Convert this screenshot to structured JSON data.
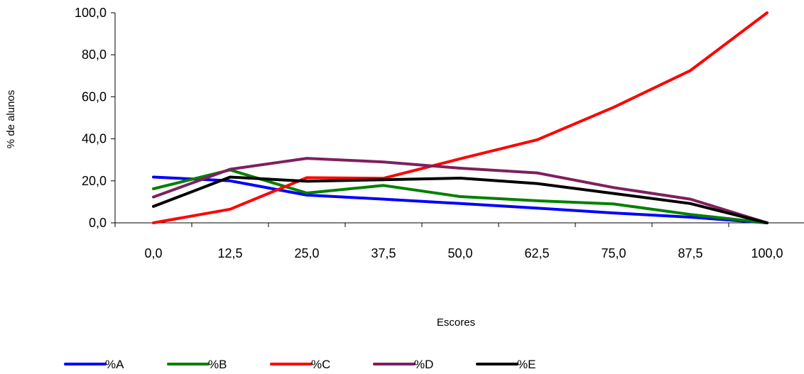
{
  "chart_data": {
    "type": "line",
    "title": "",
    "xlabel": "Escores",
    "ylabel": "% de alunos",
    "categories": [
      "0,0",
      "12,5",
      "25,0",
      "37,5",
      "50,0",
      "62,5",
      "75,0",
      "87,5",
      "100,0"
    ],
    "y_tick_labels": [
      "0,0",
      "20,0",
      "40,0",
      "60,0",
      "80,0",
      "100,0"
    ],
    "ylim": [
      0,
      100
    ],
    "y_ticks": [
      0,
      20,
      40,
      60,
      80,
      100
    ],
    "grid": false,
    "legend_position": "bottom",
    "series": [
      {
        "name": "%A",
        "color": "#0000ff",
        "values": [
          21.8,
          20.0,
          13.2,
          11.3,
          9.2,
          7.0,
          4.7,
          2.7,
          0.0
        ]
      },
      {
        "name": "%B",
        "color": "#008000",
        "values": [
          16.2,
          25.2,
          14.2,
          17.8,
          12.5,
          10.5,
          9.0,
          4.0,
          0.0
        ]
      },
      {
        "name": "%C",
        "color": "#ff0000",
        "values": [
          0.0,
          6.5,
          21.5,
          21.2,
          30.5,
          39.5,
          55.0,
          72.5,
          100.0
        ]
      },
      {
        "name": "%D",
        "color": "#7f1f5f",
        "values": [
          12.3,
          25.5,
          30.7,
          29.0,
          26.0,
          23.8,
          16.8,
          11.3,
          0.0
        ]
      },
      {
        "name": "%E",
        "color": "#000000",
        "values": [
          7.8,
          21.8,
          19.8,
          20.5,
          21.3,
          18.7,
          14.0,
          9.2,
          0.0
        ]
      }
    ]
  }
}
